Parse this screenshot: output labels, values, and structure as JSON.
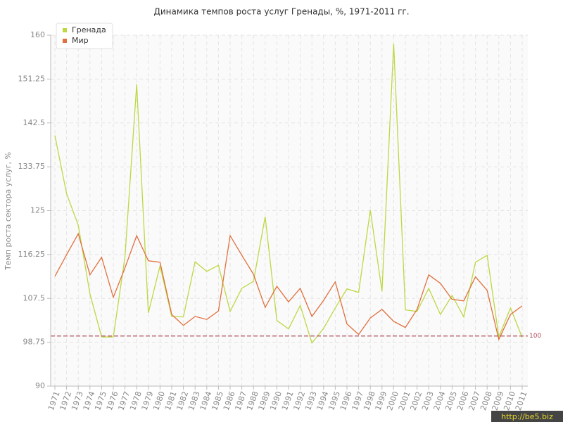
{
  "chart_data": {
    "type": "line",
    "title": "Динамика темпов роста услуг Гренады, %, 1971-2011 гг.",
    "y_label": "Темп роста сектора услуг, %",
    "categories": [
      "1971",
      "1972",
      "1973",
      "1974",
      "1975",
      "1976",
      "1977",
      "1978",
      "1979",
      "1980",
      "1981",
      "1982",
      "1983",
      "1984",
      "1985",
      "1986",
      "1987",
      "1988",
      "1989",
      "1990",
      "1991",
      "1992",
      "1993",
      "1994",
      "1995",
      "1996",
      "1997",
      "1998",
      "1999",
      "2000",
      "2001",
      "2002",
      "2003",
      "2004",
      "2005",
      "2006",
      "2007",
      "2008",
      "2009",
      "2010",
      "2011"
    ],
    "series": [
      {
        "name": "Гренада",
        "color": "#bcd843",
        "values": [
          140,
          128.4,
          122.1,
          108.4,
          99.8,
          99.8,
          115.8,
          150.2,
          104.6,
          114,
          103.9,
          103.8,
          114.8,
          112.9,
          114.1,
          104.9,
          109.5,
          110.9,
          123.8,
          103.1,
          101.4,
          106.1,
          98.6,
          101.5,
          105.6,
          109.4,
          108.7,
          125.1,
          108.9,
          158.3,
          105.2,
          104.9,
          109.5,
          104.3,
          108.1,
          103.8,
          114.7,
          116.1,
          99.8,
          105.6,
          99.7
        ]
      },
      {
        "name": "Мир",
        "color": "#e0703e",
        "values": [
          111.9,
          116.2,
          120.4,
          112.2,
          115.7,
          107.7,
          113.6,
          120,
          115,
          114.7,
          104.3,
          102.1,
          103.9,
          103.3,
          105,
          120,
          116.1,
          112.3,
          105.7,
          109.9,
          106.8,
          109.5,
          103.9,
          107.1,
          110.8,
          102.4,
          100.3,
          103.6,
          105.3,
          102.9,
          101.7,
          105.3,
          112.2,
          110.5,
          107.3,
          107,
          111.8,
          109.1,
          99.3,
          104.3,
          106
        ]
      }
    ],
    "ylim": [
      90,
      160
    ],
    "yticks": [
      90,
      98.75,
      107.5,
      116.25,
      125,
      133.75,
      142.5,
      151.25,
      160
    ],
    "reference_line": 100,
    "reference_color": "#b04a5a",
    "grid": true,
    "legend": "top-left",
    "watermark": "http://be5.biz"
  }
}
